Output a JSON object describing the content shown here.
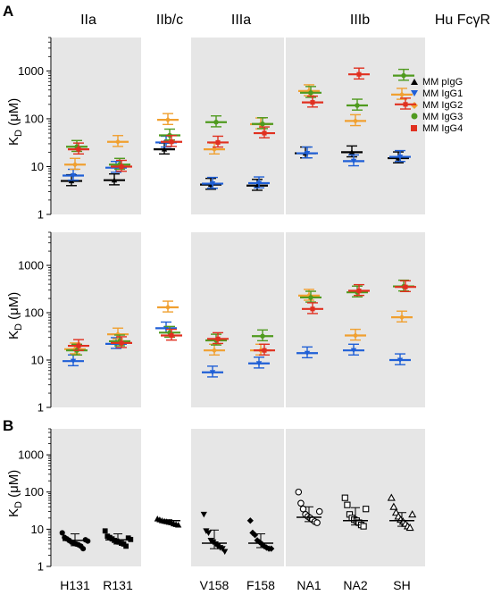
{
  "group_headers": [
    "IIa",
    "IIb/c",
    "IIIa",
    "IIIb",
    "Hu FcγR"
  ],
  "panel_labels": [
    "A",
    "B"
  ],
  "legend": [
    {
      "label": "MM pIgG",
      "color": "#000000",
      "marker": "triangle-up"
    },
    {
      "label": "MM IgG1",
      "color": "#1f5fd6",
      "marker": "triangle-down"
    },
    {
      "label": "MM IgG2",
      "color": "#f0a030",
      "marker": "diamond"
    },
    {
      "label": "MM IgG3",
      "color": "#4f9a1e",
      "marker": "circle"
    },
    {
      "label": "MM IgG4",
      "color": "#e03020",
      "marker": "square"
    }
  ],
  "shading": {
    "color": "#e6e6e6",
    "category_spans": [
      [
        0,
        1
      ],
      [
        3,
        4
      ],
      [
        5,
        7
      ]
    ]
  },
  "chart_data": [
    {
      "type": "scatter",
      "panel": "A (top)",
      "ylabel_main": "K",
      "ylabel_sub": "D",
      "ylabel_unit": " (μM)",
      "yscale": "log",
      "ylim": [
        1,
        5000
      ],
      "yticks": [
        "1",
        "10",
        "100",
        "1000"
      ],
      "categories": [
        "H131",
        "R131",
        "IIb/c",
        "V158",
        "F158",
        "NA1",
        "NA2",
        "SH"
      ],
      "series": [
        {
          "name": "MM pIgG",
          "values": [
            5,
            5.2,
            23,
            4.2,
            4.0,
            19,
            20,
            15
          ]
        },
        {
          "name": "MM IgG1",
          "values": [
            6.5,
            9.5,
            32,
            4.4,
            4.5,
            19,
            13,
            16
          ]
        },
        {
          "name": "MM IgG2",
          "values": [
            11,
            33,
            95,
            23,
            77,
            380,
            90,
            320
          ]
        },
        {
          "name": "MM IgG3",
          "values": [
            26,
            11,
            45,
            85,
            78,
            350,
            190,
            800
          ]
        },
        {
          "name": "MM IgG4",
          "values": [
            23,
            10,
            33,
            32,
            50,
            220,
            850,
            200
          ]
        }
      ]
    },
    {
      "type": "scatter",
      "panel": "A (middle)",
      "ylabel_main": "K",
      "ylabel_sub": "D",
      "ylabel_unit": " (μM)",
      "yscale": "log",
      "ylim": [
        1,
        5000
      ],
      "yticks": [
        "1",
        "10",
        "100",
        "1000"
      ],
      "categories": [
        "H131",
        "R131",
        "IIb/c",
        "V158",
        "F158",
        "NA1",
        "NA2",
        "SH"
      ],
      "series": [
        {
          "name": "MM pIgG",
          "values": [
            null,
            null,
            null,
            null,
            null,
            null,
            null,
            null
          ]
        },
        {
          "name": "MM IgG1",
          "values": [
            9.5,
            22,
            47,
            5.5,
            8.5,
            14,
            16,
            10
          ]
        },
        {
          "name": "MM IgG2",
          "values": [
            17,
            35,
            130,
            16,
            16,
            230,
            33,
            80
          ]
        },
        {
          "name": "MM IgG3",
          "values": [
            16,
            25,
            38,
            26,
            32,
            210,
            270,
            360
          ]
        },
        {
          "name": "MM IgG4",
          "values": [
            20,
            23,
            33,
            28,
            16,
            120,
            290,
            350
          ]
        }
      ]
    },
    {
      "type": "scatter",
      "panel": "B",
      "ylabel_main": "K",
      "ylabel_sub": "D",
      "ylabel_unit": " (μM)",
      "yscale": "log",
      "ylim": [
        1,
        5000
      ],
      "yticks": [
        "1",
        "10",
        "100",
        "1000"
      ],
      "categories": [
        "H131",
        "R131",
        "",
        "V158",
        "F158",
        "NA1",
        "NA2",
        "SH"
      ],
      "markers": [
        "circle",
        "square",
        "triangle-up",
        "triangle-down",
        "diamond",
        "open-circle",
        "open-square",
        "open-triangle"
      ],
      "points": [
        [
          8,
          6,
          5.5,
          5,
          4.5,
          4.2,
          4,
          3.8,
          3.5,
          3,
          5.2,
          4.8
        ],
        [
          9,
          6.5,
          6,
          5.5,
          5,
          4.8,
          4.5,
          4.2,
          4,
          3.5,
          5.8,
          5.3
        ],
        [
          19,
          18,
          17,
          16.5,
          16,
          15.5,
          15,
          14,
          13.5,
          13
        ],
        [
          25,
          9,
          8,
          5,
          4.5,
          4,
          3.5,
          3.2,
          3,
          2.5
        ],
        [
          17,
          8,
          7,
          5,
          4.5,
          4,
          3.5,
          3.2,
          3,
          3
        ],
        [
          100,
          50,
          35,
          25,
          22,
          20,
          18,
          16,
          15,
          30
        ],
        [
          70,
          45,
          25,
          20,
          18,
          17,
          15,
          13,
          12,
          35
        ],
        [
          70,
          40,
          28,
          22,
          18,
          16,
          14,
          12,
          11,
          25
        ]
      ],
      "median": [
        5,
        5.2,
        17,
        4.2,
        4.2,
        21,
        17,
        17
      ],
      "iqr_low": [
        3.6,
        4.0,
        15,
        3.0,
        3.2,
        16,
        13,
        12
      ],
      "iqr_high": [
        7.5,
        7.5,
        18,
        9.5,
        7.5,
        40,
        38,
        28
      ]
    }
  ]
}
